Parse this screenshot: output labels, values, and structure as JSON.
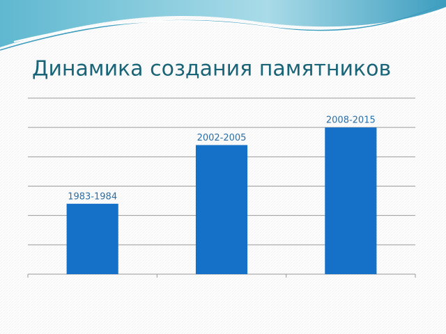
{
  "chart_data": {
    "type": "bar",
    "title": "Динамика создания памятников",
    "categories": [
      "1983-1984",
      "2002-2005",
      "2008-2015"
    ],
    "values": [
      2.4,
      4.4,
      5.0
    ],
    "color": "#1570c8",
    "ylim": [
      0,
      6
    ],
    "yticks": [
      0,
      1,
      2,
      3,
      4,
      5,
      6
    ],
    "grid": true
  }
}
